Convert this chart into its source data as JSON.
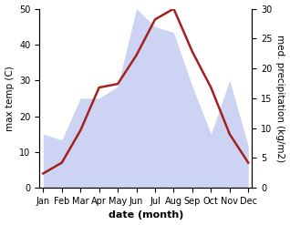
{
  "months": [
    "Jan",
    "Feb",
    "Mar",
    "Apr",
    "May",
    "Jun",
    "Jul",
    "Aug",
    "Sep",
    "Oct",
    "Nov",
    "Dec"
  ],
  "temperature": [
    4,
    7,
    16,
    28,
    29,
    37,
    47,
    50,
    38,
    28,
    15,
    7
  ],
  "precipitation": [
    9,
    8,
    15,
    15,
    17,
    30,
    27,
    26,
    17,
    9,
    18,
    7
  ],
  "temp_color": "#a52020",
  "precip_fill_color": "#bcc5f0",
  "precip_alpha": 0.75,
  "temp_ylim": [
    0,
    50
  ],
  "precip_ylim": [
    0,
    30
  ],
  "temp_yticks": [
    0,
    10,
    20,
    30,
    40,
    50
  ],
  "precip_yticks": [
    0,
    5,
    10,
    15,
    20,
    25,
    30
  ],
  "xlabel": "date (month)",
  "ylabel_left": "max temp (C)",
  "ylabel_right": "med. precipitation (kg/m2)",
  "temp_linewidth": 1.8,
  "tick_fontsize": 7,
  "label_fontsize": 7.5,
  "xlabel_fontsize": 8
}
